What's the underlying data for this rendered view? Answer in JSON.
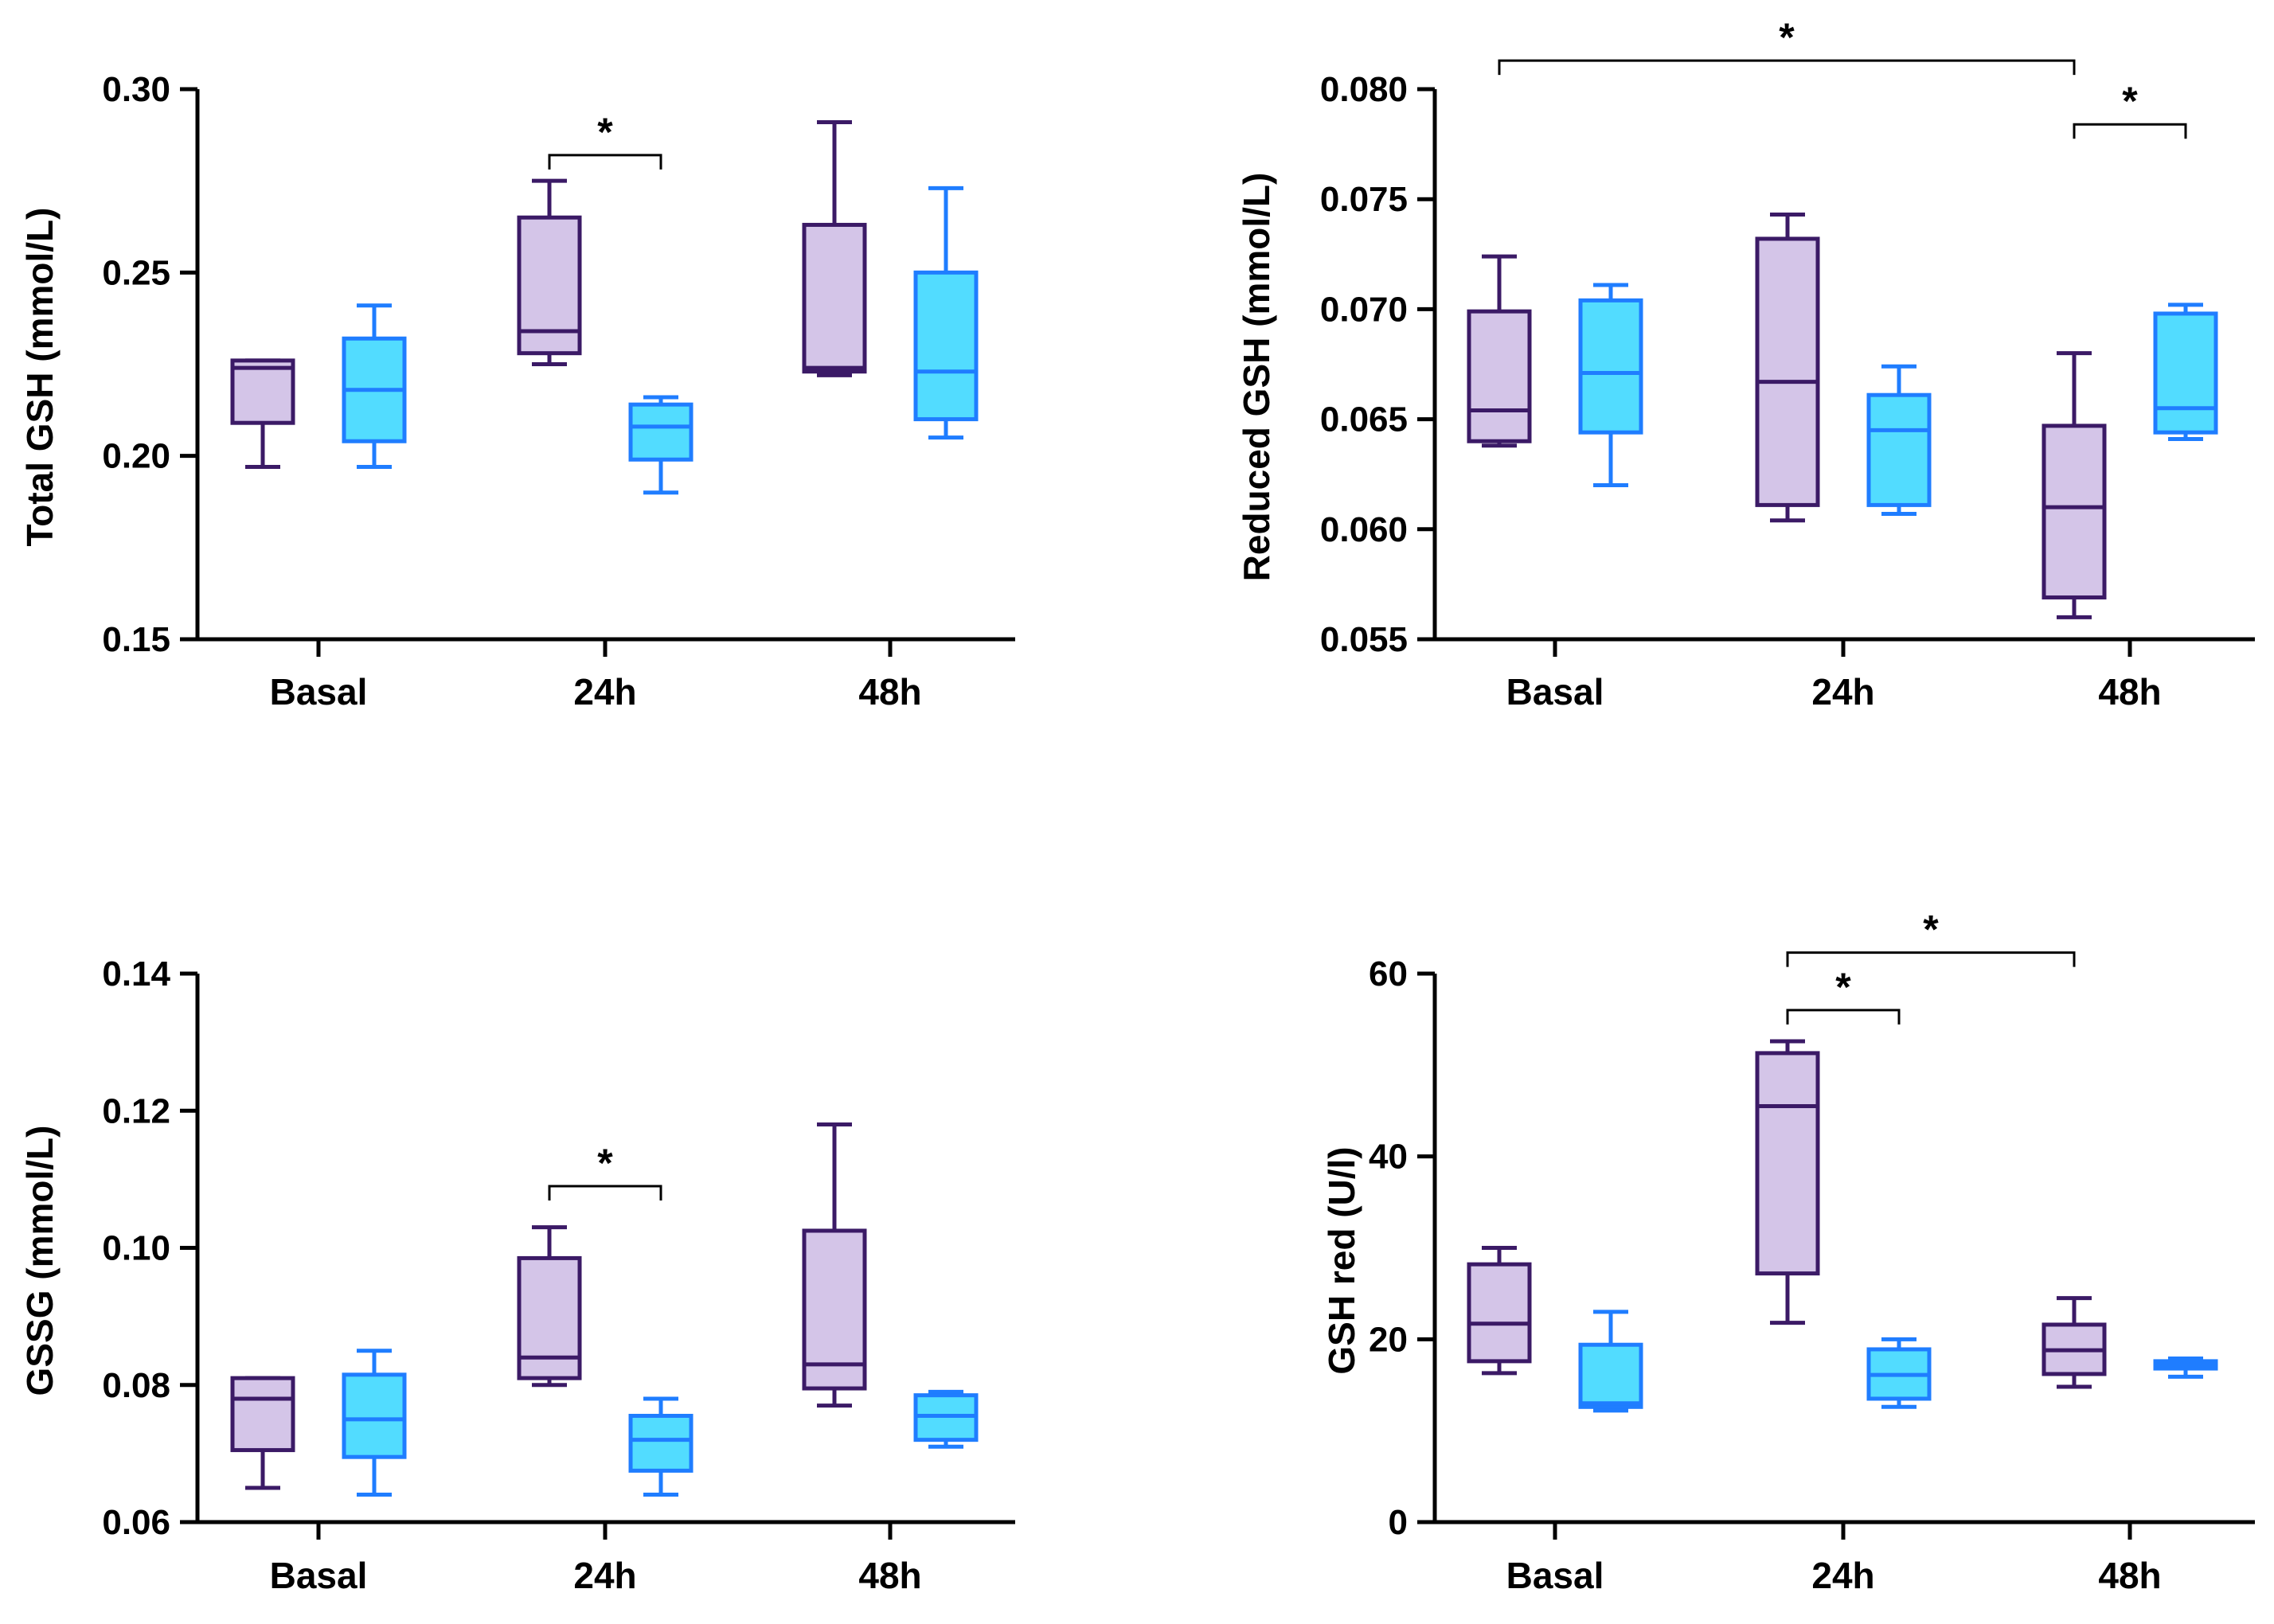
{
  "colors": {
    "group1_stroke": "#3b1a66",
    "group1_fill": "#d4c5e8",
    "group2_stroke": "#1f7dff",
    "group2_fill": "#52dcff",
    "axis": "#000000"
  },
  "chart_data": [
    {
      "type": "box",
      "title": "",
      "ylabel": "Total GSH (mmol/L)",
      "categories": [
        "Basal",
        "24h",
        "48h"
      ],
      "ylim": [
        0.15,
        0.3
      ],
      "yticks": [
        0.15,
        0.2,
        0.25,
        0.3
      ],
      "ytick_labels": [
        "0.15",
        "0.20",
        "0.25",
        "0.30"
      ],
      "series": [
        {
          "name": "group1",
          "boxes": [
            {
              "min": 0.197,
              "q1": 0.209,
              "median": 0.224,
              "q3": 0.226,
              "max": 0.226
            },
            {
              "min": 0.225,
              "q1": 0.228,
              "median": 0.234,
              "q3": 0.265,
              "max": 0.275
            },
            {
              "min": 0.222,
              "q1": 0.223,
              "median": 0.224,
              "q3": 0.263,
              "max": 0.291
            }
          ]
        },
        {
          "name": "group2",
          "boxes": [
            {
              "min": 0.197,
              "q1": 0.204,
              "median": 0.218,
              "q3": 0.232,
              "max": 0.241
            },
            {
              "min": 0.19,
              "q1": 0.199,
              "median": 0.208,
              "q3": 0.214,
              "max": 0.216
            },
            {
              "min": 0.205,
              "q1": 0.21,
              "median": 0.223,
              "q3": 0.25,
              "max": 0.273
            }
          ]
        }
      ],
      "significance": [
        {
          "label": "*",
          "from": {
            "cat": 1,
            "series": 0
          },
          "to": {
            "cat": 1,
            "series": 1
          },
          "y": 0.282
        }
      ]
    },
    {
      "type": "box",
      "title": "",
      "ylabel": "Reduced GSH (mmol/L)",
      "categories": [
        "Basal",
        "24h",
        "48h"
      ],
      "ylim": [
        0.055,
        0.08
      ],
      "yticks": [
        0.055,
        0.06,
        0.065,
        0.07,
        0.075,
        0.08
      ],
      "ytick_labels": [
        "0.055",
        "0.060",
        "0.065",
        "0.070",
        "0.075",
        "0.080"
      ],
      "series": [
        {
          "name": "group1",
          "boxes": [
            {
              "min": 0.0638,
              "q1": 0.064,
              "median": 0.0654,
              "q3": 0.0699,
              "max": 0.0724
            },
            {
              "min": 0.0604,
              "q1": 0.0611,
              "median": 0.0667,
              "q3": 0.0732,
              "max": 0.0743
            },
            {
              "min": 0.056,
              "q1": 0.0569,
              "median": 0.061,
              "q3": 0.0647,
              "max": 0.068
            }
          ]
        },
        {
          "name": "group2",
          "boxes": [
            {
              "min": 0.062,
              "q1": 0.0644,
              "median": 0.0671,
              "q3": 0.0704,
              "max": 0.0711
            },
            {
              "min": 0.0607,
              "q1": 0.0611,
              "median": 0.0645,
              "q3": 0.0661,
              "max": 0.0674
            },
            {
              "min": 0.0641,
              "q1": 0.0644,
              "median": 0.0655,
              "q3": 0.0698,
              "max": 0.0702
            }
          ]
        }
      ],
      "significance": [
        {
          "label": "*",
          "from": {
            "cat": 0,
            "series": 0
          },
          "to": {
            "cat": 2,
            "series": 0
          },
          "y": 0.0813
        },
        {
          "label": "*",
          "from": {
            "cat": 2,
            "series": 0
          },
          "to": {
            "cat": 2,
            "series": 1
          },
          "y": 0.0784
        }
      ]
    },
    {
      "type": "box",
      "title": "",
      "ylabel": "GSSG (mmol/L)",
      "categories": [
        "Basal",
        "24h",
        "48h"
      ],
      "ylim": [
        0.06,
        0.14
      ],
      "yticks": [
        0.06,
        0.08,
        0.1,
        0.12,
        0.14
      ],
      "ytick_labels": [
        "0.06",
        "0.08",
        "0.10",
        "0.12",
        "0.14"
      ],
      "series": [
        {
          "name": "group1",
          "boxes": [
            {
              "min": 0.065,
              "q1": 0.0705,
              "median": 0.078,
              "q3": 0.081,
              "max": 0.081
            },
            {
              "min": 0.08,
              "q1": 0.081,
              "median": 0.084,
              "q3": 0.0985,
              "max": 0.103
            },
            {
              "min": 0.077,
              "q1": 0.0795,
              "median": 0.083,
              "q3": 0.1025,
              "max": 0.118
            }
          ]
        },
        {
          "name": "group2",
          "boxes": [
            {
              "min": 0.064,
              "q1": 0.0695,
              "median": 0.075,
              "q3": 0.0815,
              "max": 0.085
            },
            {
              "min": 0.064,
              "q1": 0.0675,
              "median": 0.072,
              "q3": 0.0755,
              "max": 0.078
            },
            {
              "min": 0.071,
              "q1": 0.072,
              "median": 0.0755,
              "q3": 0.0785,
              "max": 0.079
            }
          ]
        }
      ],
      "significance": [
        {
          "label": "*",
          "from": {
            "cat": 1,
            "series": 0
          },
          "to": {
            "cat": 1,
            "series": 1
          },
          "y": 0.109
        }
      ]
    },
    {
      "type": "box",
      "title": "",
      "ylabel": "GSH red (U/l)",
      "categories": [
        "Basal",
        "24h",
        "48h"
      ],
      "ylim": [
        0,
        60
      ],
      "yticks": [
        0,
        20,
        40,
        60
      ],
      "ytick_labels": [
        "0",
        "20",
        "40",
        "60"
      ],
      "series": [
        {
          "name": "group1",
          "boxes": [
            {
              "min": 16.3,
              "q1": 17.6,
              "median": 21.7,
              "q3": 28.2,
              "max": 30.0
            },
            {
              "min": 21.8,
              "q1": 27.2,
              "median": 45.5,
              "q3": 51.3,
              "max": 52.6
            },
            {
              "min": 14.8,
              "q1": 16.2,
              "median": 18.8,
              "q3": 21.6,
              "max": 24.5
            }
          ]
        },
        {
          "name": "group2",
          "boxes": [
            {
              "min": 12.2,
              "q1": 12.6,
              "median": 13.0,
              "q3": 19.4,
              "max": 23.0
            },
            {
              "min": 12.6,
              "q1": 13.5,
              "median": 16.1,
              "q3": 18.9,
              "max": 20.0
            },
            {
              "min": 15.9,
              "q1": 16.8,
              "median": 17.2,
              "q3": 17.6,
              "max": 17.9
            }
          ]
        }
      ],
      "significance": [
        {
          "label": "*",
          "from": {
            "cat": 1,
            "series": 0
          },
          "to": {
            "cat": 2,
            "series": 0
          },
          "y": 62.3
        },
        {
          "label": "*",
          "from": {
            "cat": 1,
            "series": 0
          },
          "to": {
            "cat": 1,
            "series": 1
          },
          "y": 56.0
        }
      ]
    }
  ]
}
